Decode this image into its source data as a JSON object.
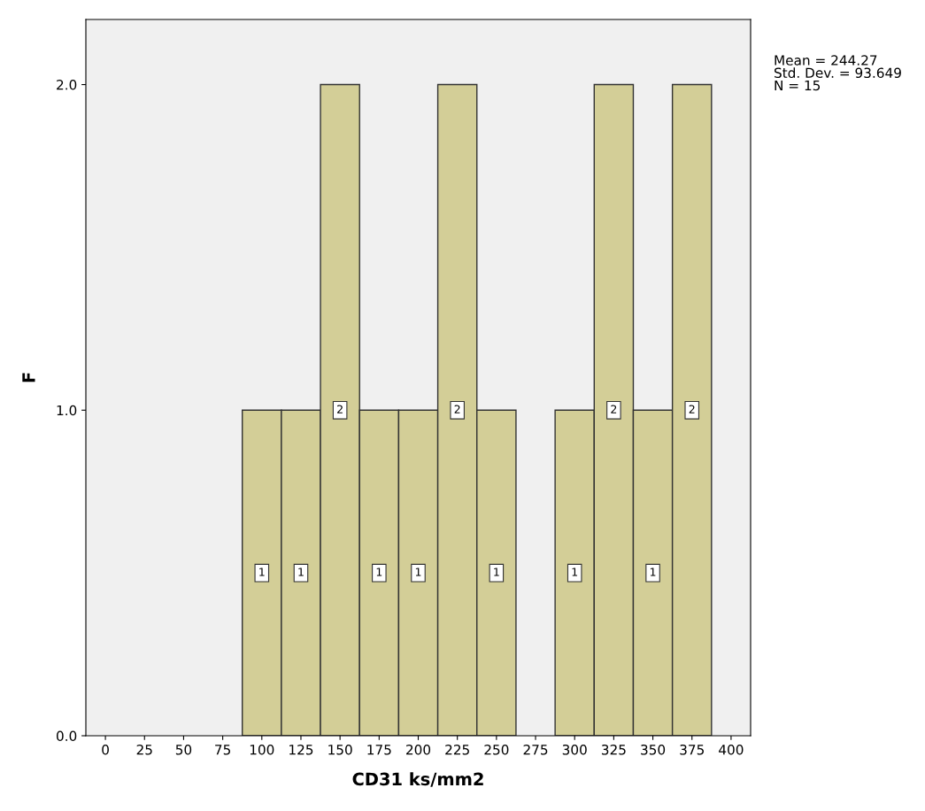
{
  "chart_data": {
    "type": "histogram",
    "xlabel": "CD31 ks/mm2",
    "ylabel": "F",
    "bins": [
      87.5,
      112.5,
      137.5,
      162.5,
      187.5,
      212.5,
      237.5,
      262.5,
      287.5,
      312.5,
      337.5,
      362.5,
      387.5
    ],
    "values": [
      1,
      1,
      2,
      1,
      1,
      2,
      1,
      0,
      1,
      2,
      1,
      2
    ],
    "color": "#d3ce97",
    "value_labels": [
      "1",
      "1",
      "2",
      "1",
      "1",
      "2",
      "1",
      null,
      "1",
      "2",
      "1",
      "2"
    ],
    "xlim": [
      -12.5,
      412.5
    ],
    "xticks": [
      0,
      25,
      50,
      75,
      100,
      125,
      150,
      175,
      200,
      225,
      250,
      275,
      300,
      325,
      350,
      375,
      400
    ],
    "ylim": [
      0,
      2.2
    ],
    "yticks": [
      {
        "value": 0,
        "label": "0.0"
      },
      {
        "value": 1,
        "label": "1.0"
      },
      {
        "value": 2,
        "label": "2.0"
      }
    ],
    "grid": false,
    "annotations": [
      "Mean = 244.27\nStd. Dev. = 93.649\nN = 15"
    ]
  }
}
